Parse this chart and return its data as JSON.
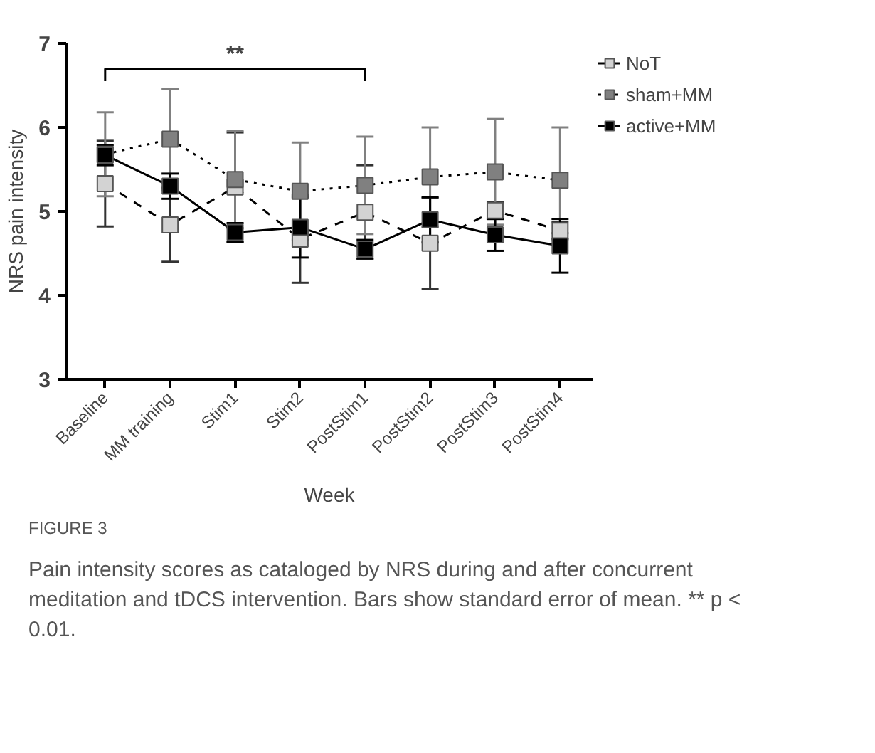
{
  "chart_data": {
    "type": "line",
    "xlabel": "Week",
    "ylabel": "NRS pain intensity",
    "categories": [
      "Baseline",
      "MM training",
      "Stim1",
      "Stim2",
      "PostStim1",
      "PostStim2",
      "PostStim3",
      "PostStim4"
    ],
    "series": [
      {
        "name": "NoT",
        "color": "#d3d3d3",
        "line_style": "dashed",
        "values": [
          5.33,
          4.84,
          5.29,
          4.67,
          4.99,
          4.62,
          5.01,
          4.77
        ],
        "errors": [
          0.51,
          0.44,
          0.65,
          0.52,
          0.56,
          0.54,
          0.1,
          0.1
        ]
      },
      {
        "name": "sham+MM",
        "color": "#808080",
        "line_style": "dotted",
        "values": [
          5.68,
          5.86,
          5.38,
          5.24,
          5.31,
          5.41,
          5.47,
          5.37
        ],
        "errors": [
          0.5,
          0.6,
          0.58,
          0.58,
          0.58,
          0.59,
          0.63,
          0.63
        ]
      },
      {
        "name": "active+MM",
        "color": "#000000",
        "line_style": "solid",
        "values": [
          5.67,
          5.3,
          4.75,
          4.81,
          4.55,
          4.9,
          4.72,
          4.59
        ],
        "errors": [
          0.12,
          0.15,
          0.11,
          0.36,
          0.11,
          0.27,
          0.19,
          0.32
        ]
      }
    ],
    "ylim": [
      3,
      7
    ],
    "yticks": [
      3,
      4,
      5,
      6,
      7
    ],
    "grid": false,
    "legend": "top right",
    "marker": "square",
    "annotations": [
      "**",
      "FIGURE 3",
      "Pain intensity scores as cataloged by NRS during and after concurrent meditation and tDCS intervention. Bars show standard error of mean. ** p < 0.01."
    ]
  }
}
